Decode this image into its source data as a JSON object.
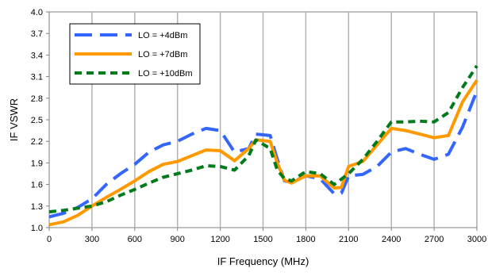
{
  "chart_data": {
    "type": "line",
    "title": "",
    "xlabel": "IF Frequency (MHz)",
    "ylabel": "IF VSWR",
    "xlim": [
      0,
      3000
    ],
    "ylim": [
      1.0,
      4.0
    ],
    "x_ticks": [
      "0",
      "300",
      "600",
      "900",
      "1200",
      "1500",
      "1800",
      "2100",
      "2400",
      "2700",
      "3000"
    ],
    "y_ticks": [
      "1.0",
      "1.3",
      "1.6",
      "1.9",
      "2.2",
      "2.5",
      "2.8",
      "3.1",
      "3.4",
      "3.7",
      "4.0"
    ],
    "grid": "vertical",
    "legend_position": "top-left",
    "series": [
      {
        "name": "LO = +4dBm",
        "color": "#3366ff",
        "dash": "long-dash",
        "points": [
          [
            0,
            1.15
          ],
          [
            100,
            1.2
          ],
          [
            200,
            1.28
          ],
          [
            300,
            1.4
          ],
          [
            400,
            1.6
          ],
          [
            500,
            1.75
          ],
          [
            600,
            1.88
          ],
          [
            700,
            2.05
          ],
          [
            800,
            2.15
          ],
          [
            900,
            2.2
          ],
          [
            1000,
            2.3
          ],
          [
            1100,
            2.38
          ],
          [
            1200,
            2.35
          ],
          [
            1250,
            2.2
          ],
          [
            1300,
            2.05
          ],
          [
            1400,
            2.1
          ],
          [
            1450,
            2.3
          ],
          [
            1550,
            2.28
          ],
          [
            1600,
            1.95
          ],
          [
            1650,
            1.65
          ],
          [
            1700,
            1.63
          ],
          [
            1800,
            1.72
          ],
          [
            1900,
            1.68
          ],
          [
            2000,
            1.47
          ],
          [
            2050,
            1.48
          ],
          [
            2100,
            1.72
          ],
          [
            2200,
            1.74
          ],
          [
            2300,
            1.85
          ],
          [
            2400,
            2.05
          ],
          [
            2500,
            2.1
          ],
          [
            2600,
            2.02
          ],
          [
            2700,
            1.95
          ],
          [
            2800,
            2.02
          ],
          [
            2900,
            2.4
          ],
          [
            3000,
            2.9
          ]
        ]
      },
      {
        "name": "LO = +7dBm",
        "color": "#ff9900",
        "dash": "solid",
        "points": [
          [
            0,
            1.04
          ],
          [
            100,
            1.08
          ],
          [
            200,
            1.17
          ],
          [
            300,
            1.3
          ],
          [
            400,
            1.42
          ],
          [
            500,
            1.53
          ],
          [
            600,
            1.65
          ],
          [
            700,
            1.78
          ],
          [
            800,
            1.88
          ],
          [
            900,
            1.92
          ],
          [
            1000,
            2.0
          ],
          [
            1100,
            2.08
          ],
          [
            1200,
            2.07
          ],
          [
            1250,
            2.0
          ],
          [
            1300,
            1.93
          ],
          [
            1400,
            2.1
          ],
          [
            1450,
            2.22
          ],
          [
            1550,
            2.2
          ],
          [
            1600,
            1.9
          ],
          [
            1650,
            1.66
          ],
          [
            1700,
            1.62
          ],
          [
            1800,
            1.72
          ],
          [
            1900,
            1.72
          ],
          [
            2000,
            1.55
          ],
          [
            2050,
            1.56
          ],
          [
            2100,
            1.85
          ],
          [
            2200,
            1.92
          ],
          [
            2300,
            2.15
          ],
          [
            2400,
            2.38
          ],
          [
            2500,
            2.35
          ],
          [
            2600,
            2.3
          ],
          [
            2700,
            2.25
          ],
          [
            2800,
            2.28
          ],
          [
            2900,
            2.75
          ],
          [
            3000,
            3.05
          ]
        ]
      },
      {
        "name": "LO = +10dBm",
        "color": "#007a1a",
        "dash": "short-dash",
        "points": [
          [
            0,
            1.22
          ],
          [
            100,
            1.24
          ],
          [
            200,
            1.27
          ],
          [
            300,
            1.3
          ],
          [
            400,
            1.36
          ],
          [
            500,
            1.45
          ],
          [
            600,
            1.53
          ],
          [
            700,
            1.62
          ],
          [
            800,
            1.7
          ],
          [
            900,
            1.75
          ],
          [
            1000,
            1.8
          ],
          [
            1100,
            1.86
          ],
          [
            1200,
            1.85
          ],
          [
            1300,
            1.8
          ],
          [
            1400,
            2.0
          ],
          [
            1450,
            2.22
          ],
          [
            1550,
            2.1
          ],
          [
            1600,
            1.8
          ],
          [
            1650,
            1.68
          ],
          [
            1700,
            1.65
          ],
          [
            1800,
            1.78
          ],
          [
            1900,
            1.75
          ],
          [
            2000,
            1.6
          ],
          [
            2100,
            1.75
          ],
          [
            2200,
            1.95
          ],
          [
            2300,
            2.2
          ],
          [
            2400,
            2.47
          ],
          [
            2500,
            2.47
          ],
          [
            2600,
            2.48
          ],
          [
            2700,
            2.47
          ],
          [
            2800,
            2.6
          ],
          [
            2900,
            2.95
          ],
          [
            3000,
            3.25
          ]
        ]
      }
    ]
  }
}
